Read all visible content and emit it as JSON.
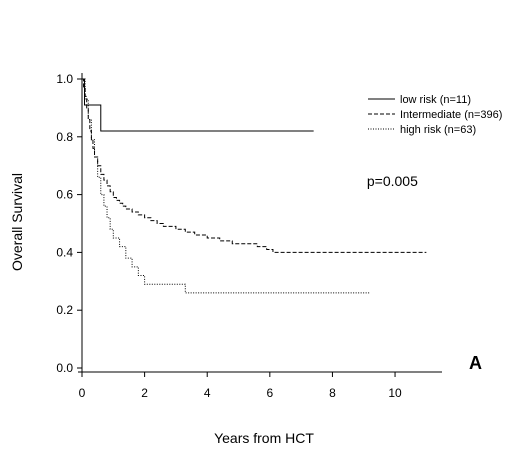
{
  "chart_data": {
    "type": "line",
    "title": "",
    "xlabel": "Years from HCT",
    "ylabel": "Overall Survival",
    "xlim": [
      0,
      11.5
    ],
    "ylim": [
      0,
      1.0
    ],
    "xticks": [
      0,
      2,
      4,
      6,
      8,
      10
    ],
    "yticks": [
      0.0,
      0.2,
      0.4,
      0.6,
      0.8,
      1.0
    ],
    "xtick_labels": [
      "0",
      "2",
      "4",
      "6",
      "8",
      "10"
    ],
    "ytick_labels": [
      "0.0",
      "0.2",
      "0.4",
      "0.6",
      "0.8",
      "1.0"
    ],
    "grid": false,
    "legend_position": "top-right",
    "step": true,
    "series": [
      {
        "name": "low risk  (n=11)",
        "style": "solid",
        "x": [
          0,
          0.08,
          0.6,
          7.4
        ],
        "y": [
          1.0,
          0.91,
          0.82,
          0.82
        ]
      },
      {
        "name": "Intermediate  (n=396)",
        "style": "dashed",
        "x": [
          0,
          0.05,
          0.1,
          0.15,
          0.2,
          0.25,
          0.3,
          0.35,
          0.4,
          0.5,
          0.6,
          0.7,
          0.8,
          0.9,
          1.0,
          1.1,
          1.2,
          1.3,
          1.4,
          1.5,
          1.6,
          1.8,
          2.0,
          2.2,
          2.4,
          2.6,
          2.8,
          3.0,
          3.3,
          3.6,
          4.0,
          4.4,
          4.8,
          5.2,
          5.6,
          5.9,
          6.1,
          11.0
        ],
        "y": [
          1.0,
          0.97,
          0.94,
          0.9,
          0.86,
          0.82,
          0.79,
          0.76,
          0.73,
          0.7,
          0.67,
          0.65,
          0.63,
          0.61,
          0.59,
          0.58,
          0.57,
          0.56,
          0.55,
          0.55,
          0.54,
          0.53,
          0.52,
          0.51,
          0.5,
          0.49,
          0.49,
          0.48,
          0.47,
          0.46,
          0.45,
          0.44,
          0.43,
          0.43,
          0.42,
          0.41,
          0.4,
          0.4
        ]
      },
      {
        "name": "high risk  (n=63)",
        "style": "dotted",
        "x": [
          0,
          0.1,
          0.2,
          0.3,
          0.4,
          0.5,
          0.6,
          0.7,
          0.8,
          0.9,
          1.0,
          1.2,
          1.4,
          1.6,
          1.8,
          2.0,
          3.3,
          9.2
        ],
        "y": [
          1.0,
          0.93,
          0.86,
          0.79,
          0.73,
          0.66,
          0.6,
          0.56,
          0.52,
          0.48,
          0.45,
          0.42,
          0.38,
          0.35,
          0.32,
          0.29,
          0.26,
          0.26
        ]
      }
    ],
    "annotations": [
      {
        "text": "p=0.005",
        "x": 9.1,
        "y": 0.63
      }
    ],
    "panel_label": "A"
  }
}
